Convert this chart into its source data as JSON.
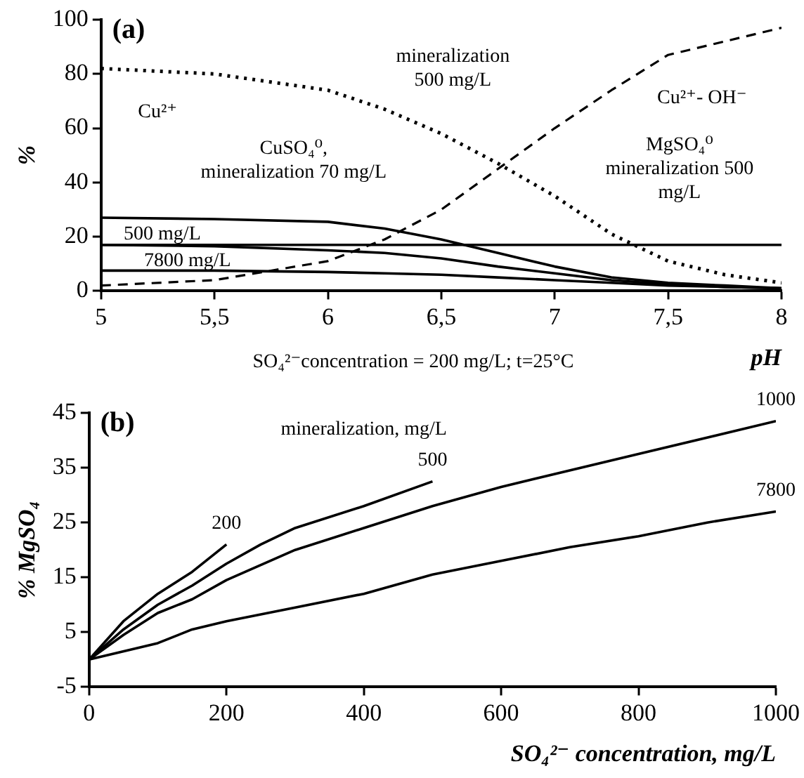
{
  "chart_data": [
    {
      "type": "line",
      "title": "(a)",
      "xlabel": "pH",
      "ylabel": "%",
      "xlim": [
        5,
        8
      ],
      "ylim": [
        0,
        100
      ],
      "xticks": [
        5,
        {
          "value": 5.5,
          "label": "5,5"
        },
        6,
        {
          "value": 6.5,
          "label": "6,5"
        },
        7,
        {
          "value": 7.5,
          "label": "7,5"
        },
        8
      ],
      "yticks": [
        0,
        20,
        40,
        60,
        80,
        100
      ],
      "legend": false,
      "marker": "none",
      "x": [
        5,
        5.5,
        6,
        6.25,
        6.5,
        6.75,
        7,
        7.25,
        7.5,
        7.75,
        8
      ],
      "series": [
        {
          "color": "#000000",
          "line_style": "dotted",
          "values": [
            82,
            80,
            74,
            67,
            58,
            47,
            35,
            21,
            11,
            6,
            3
          ]
        },
        {
          "color": "#000000",
          "line_style": "dashed",
          "values": [
            2,
            4,
            11,
            19,
            30,
            45,
            60,
            74,
            87,
            92,
            97
          ]
        },
        {
          "color": "#000000",
          "line_style": "solid",
          "values": [
            17,
            17,
            17,
            17,
            17,
            17,
            17,
            17,
            17,
            17,
            17
          ]
        },
        {
          "color": "#000000",
          "line_style": "solid",
          "values": [
            27,
            26.5,
            25.5,
            23,
            19,
            14,
            9,
            5,
            3,
            2,
            1
          ]
        },
        {
          "color": "#000000",
          "line_style": "solid",
          "values": [
            17,
            16.5,
            15,
            14,
            12,
            9,
            6.5,
            4,
            2.5,
            1.5,
            1
          ]
        },
        {
          "color": "#000000",
          "line_style": "solid",
          "values": [
            7.5,
            7.5,
            7,
            6.5,
            6,
            5,
            4,
            3,
            2,
            1.5,
            1
          ]
        }
      ],
      "annotations": [
        "Cu²⁺",
        "CuSO₄⁰,\nmineralization 70 mg/L",
        "500 mg/L",
        "7800 mg/L",
        "mineralization\n500 mg/L",
        "Cu²⁺- OH⁻",
        "MgSO₄⁰\nmineralization 500\nmg/L",
        "SO₄²⁻concentration = 200 mg/L; t=25°C"
      ]
    },
    {
      "type": "line",
      "title": "(b)",
      "xlabel": "SO₄²⁻ concentration, mg/L",
      "ylabel": "% MgSO₄",
      "xlim": [
        0,
        1000
      ],
      "ylim": [
        -5,
        45
      ],
      "xticks": [
        0,
        200,
        400,
        600,
        800,
        1000
      ],
      "yticks": [
        -5,
        5,
        15,
        25,
        35,
        45
      ],
      "legend": false,
      "marker": "none",
      "line_style": "solid",
      "series": [
        {
          "name": "200",
          "color": "#000000",
          "x": [
            0,
            50,
            100,
            150,
            200
          ],
          "values": [
            0,
            7,
            12,
            16,
            21
          ]
        },
        {
          "name": "500",
          "color": "#000000",
          "x": [
            0,
            50,
            100,
            150,
            200,
            250,
            300,
            400,
            500
          ],
          "values": [
            0,
            5.5,
            10,
            13.5,
            17.5,
            21,
            24,
            28,
            32.5
          ]
        },
        {
          "name": "1000",
          "color": "#000000",
          "x": [
            0,
            50,
            100,
            150,
            200,
            300,
            400,
            500,
            600,
            800,
            1000
          ],
          "values": [
            0,
            4.5,
            8.5,
            11,
            14.5,
            20,
            24,
            28,
            31.5,
            37.5,
            43.5
          ]
        },
        {
          "name": "7800",
          "color": "#000000",
          "x": [
            0,
            100,
            150,
            200,
            300,
            400,
            500,
            600,
            700,
            800,
            900,
            1000
          ],
          "values": [
            0,
            3,
            5.5,
            7,
            9.5,
            12,
            15.5,
            18,
            20.5,
            22.5,
            25,
            27
          ]
        }
      ],
      "annotations": [
        "mineralization, mg/L"
      ]
    }
  ]
}
